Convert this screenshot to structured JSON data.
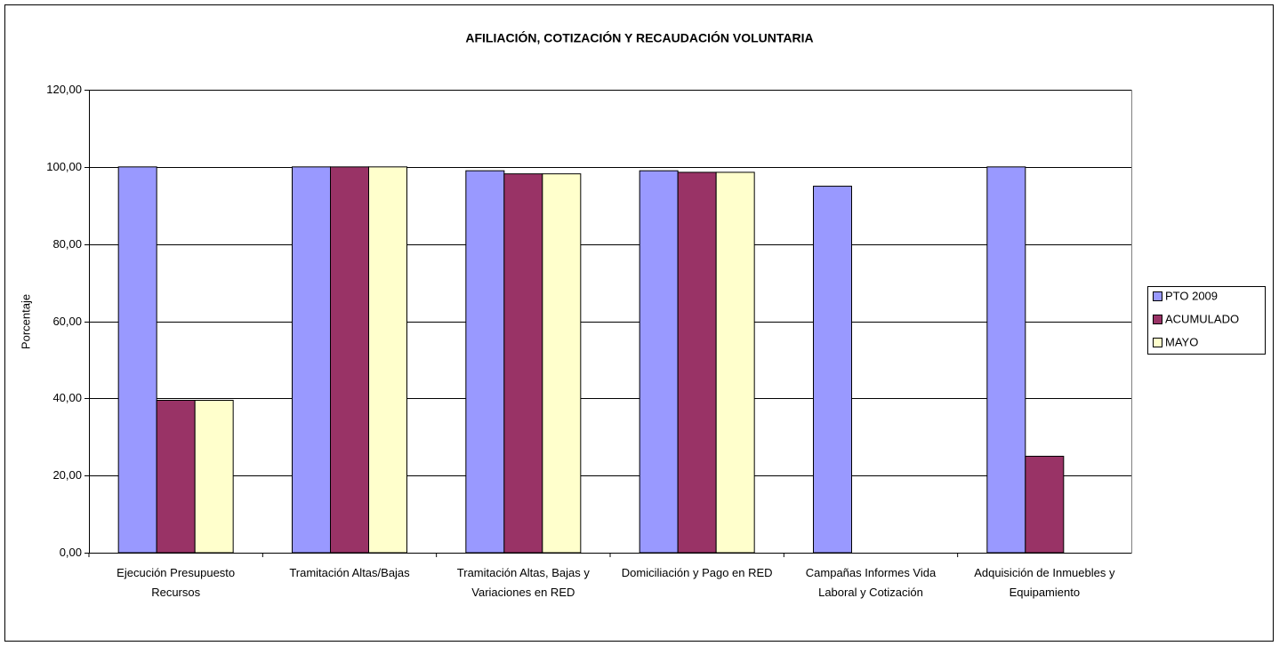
{
  "chart_data": {
    "type": "bar",
    "title": "AFILIACIÓN, COTIZACIÓN Y RECAUDACIÓN VOLUNTARIA",
    "y_label": "Porcentaje",
    "categories": [
      "Ejecución Presupuesto Recursos",
      "Tramitación Altas/Bajas",
      "Tramitación Altas, Bajas y Variaciones en RED",
      "Domiciliación y Pago en RED",
      "Campañas Informes Vida Laboral y Cotización",
      "Adquisición de Inmuebles y Equipamiento"
    ],
    "series": [
      {
        "name": "PTO 2009",
        "color": "#9999ff",
        "values": [
          100,
          100,
          99,
          99,
          95,
          100
        ]
      },
      {
        "name": "ACUMULADO",
        "color": "#993366",
        "values": [
          39.5,
          100,
          98.2,
          98.6,
          null,
          25
        ]
      },
      {
        "name": "MAYO",
        "color": "#ffffcc",
        "values": [
          39.5,
          100,
          98.2,
          98.6,
          null,
          null
        ]
      }
    ],
    "ylim": [
      0,
      120
    ],
    "yticks": [
      {
        "value": 0,
        "label": "0,00"
      },
      {
        "value": 20,
        "label": "20,00"
      },
      {
        "value": 40,
        "label": "40,00"
      },
      {
        "value": 60,
        "label": "60,00"
      },
      {
        "value": 80,
        "label": "80,00"
      },
      {
        "value": 100,
        "label": "100,00"
      },
      {
        "value": 120,
        "label": "120,00"
      }
    ],
    "grid": true,
    "legend": "right"
  }
}
